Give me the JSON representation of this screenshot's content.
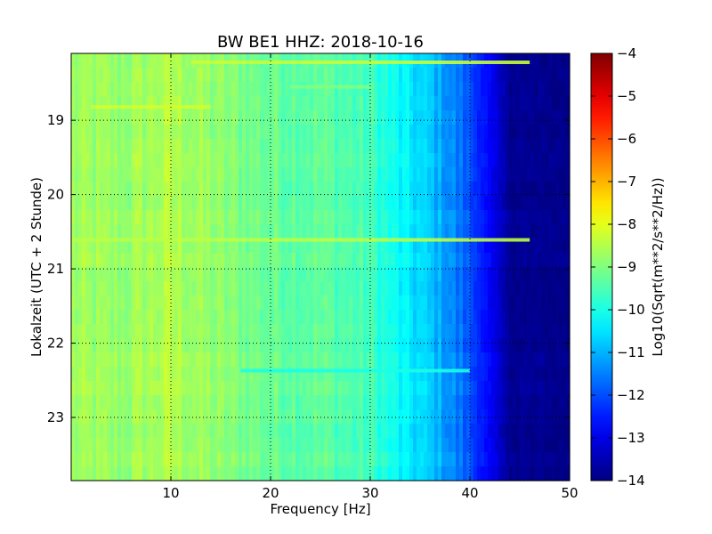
{
  "chart_data": {
    "type": "heatmap",
    "title": "BW BE1 HHZ: 2018-10-16",
    "xlabel": "Frequency [Hz]",
    "ylabel": "Lokalzeit (UTC + 2 Stunde)",
    "xlim": [
      0,
      50
    ],
    "ylim": [
      18.1,
      23.85
    ],
    "y_inverted": true,
    "x_ticks": [
      10,
      20,
      30,
      40,
      50
    ],
    "x_tick_labels": [
      "10",
      "20",
      "30",
      "40",
      "50"
    ],
    "y_ticks": [
      19,
      20,
      21,
      22,
      23
    ],
    "y_tick_labels": [
      "19",
      "20",
      "21",
      "22",
      "23"
    ],
    "grid": true,
    "colormap": "jet",
    "colorbar": {
      "label": "Log10(Sqrt(m**2/s**2/Hz))",
      "range": [
        -14,
        -4
      ],
      "ticks": [
        -14,
        -13,
        -12,
        -11,
        -10,
        -9,
        -8,
        -7,
        -6,
        -5,
        -4
      ],
      "tick_labels": [
        "−14",
        "−13",
        "−12",
        "−11",
        "−10",
        "−9",
        "−8",
        "−7",
        "−6",
        "−5",
        "−4"
      ]
    },
    "spectral_profile": {
      "frequency_hz": [
        0,
        5,
        10,
        15,
        20,
        25,
        30,
        33,
        36,
        38,
        40,
        42,
        44,
        50
      ],
      "log10_amplitude": [
        -8.7,
        -8.8,
        -8.5,
        -8.9,
        -9.2,
        -9.3,
        -9.6,
        -10.3,
        -10.8,
        -11.3,
        -12.0,
        -12.8,
        -13.8,
        -13.9
      ]
    },
    "narrowband_lines": [
      {
        "time": 18.22,
        "f_start": 12,
        "f_end": 46,
        "log10_amplitude": -8.3
      },
      {
        "time": 20.61,
        "f_start": 0,
        "f_end": 46,
        "log10_amplitude": -8.4
      },
      {
        "time": 18.82,
        "f_start": 2,
        "f_end": 14,
        "log10_amplitude": -8.2
      },
      {
        "time": 22.37,
        "f_start": 17,
        "f_end": 40,
        "log10_amplitude": -10.0
      },
      {
        "time": 18.55,
        "f_start": 22,
        "f_end": 30,
        "log10_amplitude": -9.0
      }
    ]
  }
}
